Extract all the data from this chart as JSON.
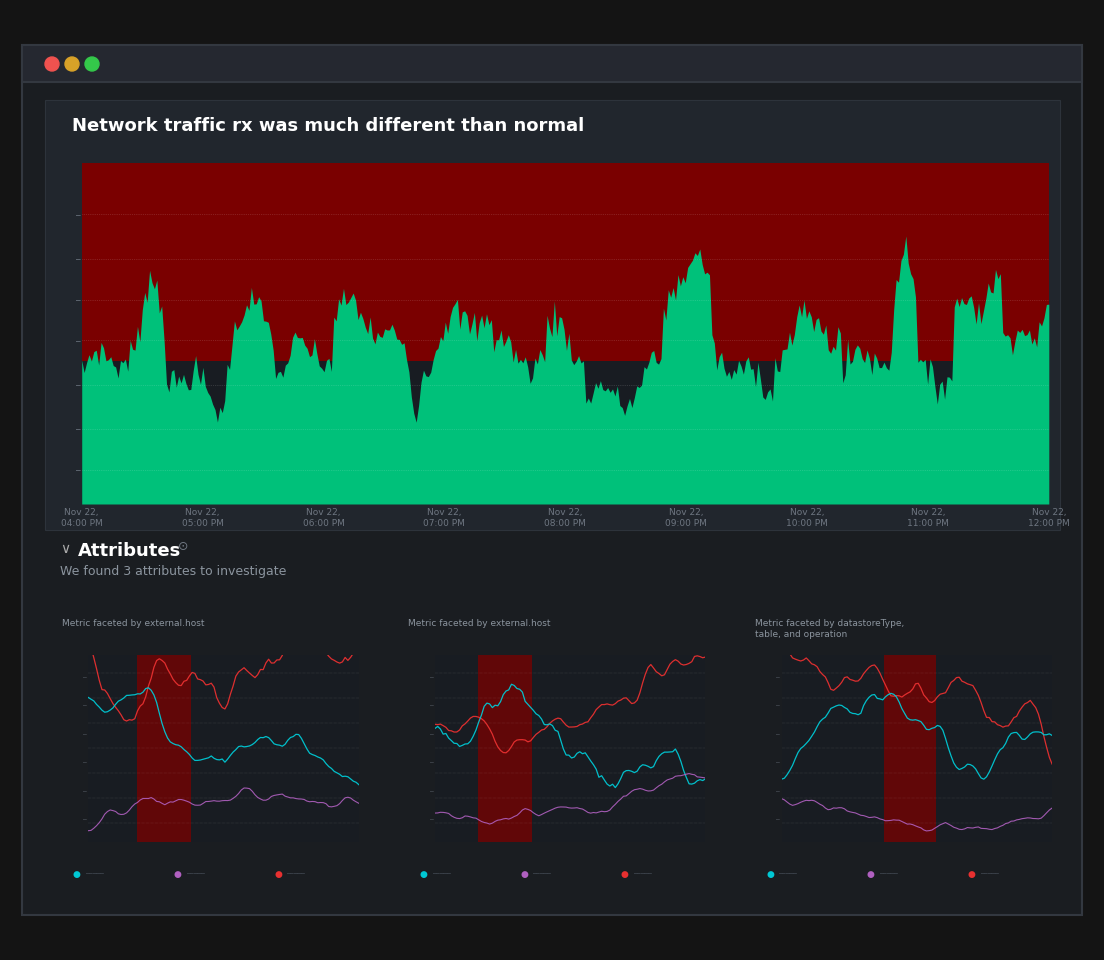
{
  "bg_outer": "#141414",
  "bg_window": "#1a1d21",
  "bg_titlebar": "#252830",
  "bg_card": "#21262d",
  "bg_chart": "#181c22",
  "dot_red": "#f0524f",
  "dot_yellow": "#d8a228",
  "dot_green": "#34c84a",
  "main_title": "Network traffic rx was much different than normal",
  "main_title_color": "#ffffff",
  "main_title_fontsize": 13,
  "x_labels": [
    "Nov 22,\n04:00 PM",
    "Nov 22,\n05:00 PM",
    "Nov 22,\n06:00 PM",
    "Nov 22,\n07:00 PM",
    "Nov 22,\n08:00 PM",
    "Nov 22,\n09:00 PM",
    "Nov 22,\n10:00 PM",
    "Nov 22,\n11:00 PM",
    "Nov 22,\n12:00 PM"
  ],
  "tick_color": "#6e7681",
  "tick_fontsize": 6.5,
  "green_fill": "#00c17a",
  "red_fill": "#7a0000",
  "grid_color": "#ffffff",
  "grid_alpha": 0.12,
  "attributes_title": "Attributes",
  "attributes_subtitle": "We found 3 attributes to investigate",
  "sub_titles": [
    "Metric faceted by external.host",
    "Metric faceted by external.host",
    "Metric faceted by datastoreType,\ntable, and operation"
  ],
  "sub_title_fontsize": 6.5,
  "sub_line_cyan": "#00c8d4",
  "sub_line_purple": "#b060c0",
  "sub_line_red": "#e83030",
  "sub_anomaly_red": "#7a0000",
  "legend_dot_cyan": "#00c8d4",
  "legend_dot_purple": "#b060c0",
  "legend_dot_red": "#e83030",
  "card_border": "#2d333b"
}
